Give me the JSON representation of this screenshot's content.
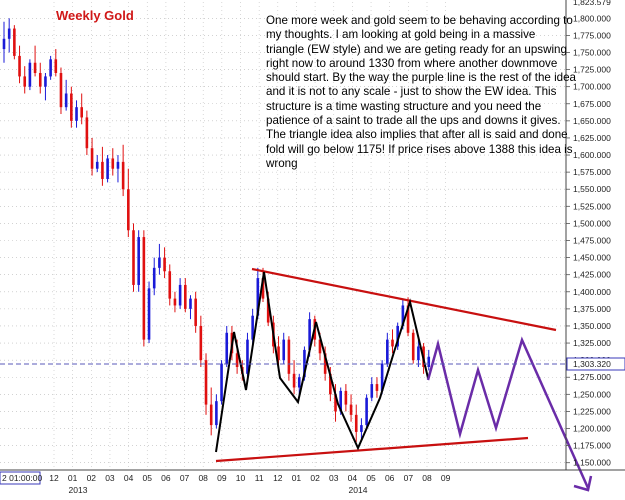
{
  "chart_data": {
    "type": "candlestick",
    "title": "Weekly Gold",
    "annotation": "One more week and gold seem to be behaving according to my thoughts. I am looking at gold being in a massive triangle (EW style) and we are geting ready for an upswing right now to around 1330 from where another downmove should start. By the way the purple line is the rest of the idea and it is not to any scale - just to show the EW idea. This structure is a time wasting structure and you need the patience of a saint to trade all the ups and downs it gives. The triangle idea also implies that after all is said and done fold will go below 1175! If price rises above 1388 this idea is wrong",
    "ylim": [
      1140,
      1830
    ],
    "yticks": [
      "1,800.000",
      "1,775.000",
      "1,750.000",
      "1,725.000",
      "1,700.000",
      "1,675.000",
      "1,650.000",
      "1,625.000",
      "1,600.000",
      "1,575.000",
      "1,550.000",
      "1,525.000",
      "1,500.000",
      "1,475.000",
      "1,450.000",
      "1,425.000",
      "1,400.000",
      "1,375.000",
      "1,350.000",
      "1,325.000",
      "1,300.000",
      "1,275.000",
      "1,250.000",
      "1,225.000",
      "1,200.000",
      "1,175.000",
      "1,150.000"
    ],
    "top_partial_label": "1,823.579",
    "last_price": 1303.32,
    "last_price_label": "1,303.320",
    "x_timestamp_label": "2 01:00:00",
    "month_labels": [
      "12",
      "01",
      "02",
      "03",
      "04",
      "05",
      "06",
      "07",
      "08",
      "09",
      "10",
      "11",
      "12",
      "01",
      "02",
      "03",
      "04",
      "05",
      "06",
      "07",
      "08",
      "09"
    ],
    "year_labels": [
      "2013",
      "2014"
    ],
    "candles": [
      {
        "o": 1755,
        "h": 1795,
        "l": 1735,
        "c": 1770
      },
      {
        "o": 1770,
        "h": 1800,
        "l": 1750,
        "c": 1785
      },
      {
        "o": 1785,
        "h": 1790,
        "l": 1740,
        "c": 1745
      },
      {
        "o": 1745,
        "h": 1760,
        "l": 1705,
        "c": 1715
      },
      {
        "o": 1715,
        "h": 1730,
        "l": 1690,
        "c": 1700
      },
      {
        "o": 1700,
        "h": 1740,
        "l": 1695,
        "c": 1735
      },
      {
        "o": 1735,
        "h": 1760,
        "l": 1715,
        "c": 1720
      },
      {
        "o": 1720,
        "h": 1735,
        "l": 1690,
        "c": 1700
      },
      {
        "o": 1700,
        "h": 1720,
        "l": 1680,
        "c": 1715
      },
      {
        "o": 1715,
        "h": 1745,
        "l": 1710,
        "c": 1740
      },
      {
        "o": 1740,
        "h": 1755,
        "l": 1715,
        "c": 1720
      },
      {
        "o": 1720,
        "h": 1728,
        "l": 1660,
        "c": 1670
      },
      {
        "o": 1670,
        "h": 1710,
        "l": 1665,
        "c": 1690
      },
      {
        "o": 1690,
        "h": 1700,
        "l": 1640,
        "c": 1650
      },
      {
        "o": 1650,
        "h": 1680,
        "l": 1640,
        "c": 1670
      },
      {
        "o": 1670,
        "h": 1690,
        "l": 1645,
        "c": 1655
      },
      {
        "o": 1655,
        "h": 1665,
        "l": 1600,
        "c": 1610
      },
      {
        "o": 1610,
        "h": 1625,
        "l": 1570,
        "c": 1580
      },
      {
        "o": 1580,
        "h": 1600,
        "l": 1575,
        "c": 1590
      },
      {
        "o": 1590,
        "h": 1612,
        "l": 1555,
        "c": 1565
      },
      {
        "o": 1565,
        "h": 1600,
        "l": 1560,
        "c": 1595
      },
      {
        "o": 1595,
        "h": 1610,
        "l": 1570,
        "c": 1580
      },
      {
        "o": 1580,
        "h": 1600,
        "l": 1560,
        "c": 1590
      },
      {
        "o": 1590,
        "h": 1615,
        "l": 1540,
        "c": 1550
      },
      {
        "o": 1550,
        "h": 1580,
        "l": 1480,
        "c": 1490
      },
      {
        "o": 1490,
        "h": 1500,
        "l": 1400,
        "c": 1410
      },
      {
        "o": 1410,
        "h": 1490,
        "l": 1400,
        "c": 1480
      },
      {
        "o": 1480,
        "h": 1490,
        "l": 1320,
        "c": 1330
      },
      {
        "o": 1330,
        "h": 1415,
        "l": 1325,
        "c": 1405
      },
      {
        "o": 1405,
        "h": 1450,
        "l": 1395,
        "c": 1435
      },
      {
        "o": 1435,
        "h": 1470,
        "l": 1425,
        "c": 1450
      },
      {
        "o": 1450,
        "h": 1465,
        "l": 1420,
        "c": 1430
      },
      {
        "o": 1430,
        "h": 1440,
        "l": 1380,
        "c": 1390
      },
      {
        "o": 1390,
        "h": 1400,
        "l": 1370,
        "c": 1380
      },
      {
        "o": 1380,
        "h": 1420,
        "l": 1375,
        "c": 1410
      },
      {
        "o": 1410,
        "h": 1420,
        "l": 1370,
        "c": 1375
      },
      {
        "o": 1375,
        "h": 1395,
        "l": 1360,
        "c": 1390
      },
      {
        "o": 1390,
        "h": 1400,
        "l": 1340,
        "c": 1350
      },
      {
        "o": 1350,
        "h": 1365,
        "l": 1290,
        "c": 1300
      },
      {
        "o": 1300,
        "h": 1310,
        "l": 1220,
        "c": 1235
      },
      {
        "o": 1235,
        "h": 1260,
        "l": 1190,
        "c": 1205
      },
      {
        "o": 1205,
        "h": 1250,
        "l": 1200,
        "c": 1240
      },
      {
        "o": 1240,
        "h": 1300,
        "l": 1235,
        "c": 1295
      },
      {
        "o": 1295,
        "h": 1350,
        "l": 1290,
        "c": 1340
      },
      {
        "o": 1340,
        "h": 1350,
        "l": 1300,
        "c": 1310
      },
      {
        "o": 1310,
        "h": 1330,
        "l": 1280,
        "c": 1290
      },
      {
        "o": 1290,
        "h": 1300,
        "l": 1270,
        "c": 1280
      },
      {
        "o": 1280,
        "h": 1340,
        "l": 1275,
        "c": 1330
      },
      {
        "o": 1330,
        "h": 1375,
        "l": 1320,
        "c": 1365
      },
      {
        "o": 1365,
        "h": 1435,
        "l": 1360,
        "c": 1420
      },
      {
        "o": 1420,
        "h": 1435,
        "l": 1385,
        "c": 1390
      },
      {
        "o": 1390,
        "h": 1400,
        "l": 1350,
        "c": 1355
      },
      {
        "o": 1355,
        "h": 1365,
        "l": 1310,
        "c": 1320
      },
      {
        "o": 1320,
        "h": 1335,
        "l": 1290,
        "c": 1300
      },
      {
        "o": 1300,
        "h": 1340,
        "l": 1295,
        "c": 1330
      },
      {
        "o": 1330,
        "h": 1335,
        "l": 1270,
        "c": 1280
      },
      {
        "o": 1280,
        "h": 1300,
        "l": 1250,
        "c": 1260
      },
      {
        "o": 1260,
        "h": 1280,
        "l": 1245,
        "c": 1275
      },
      {
        "o": 1275,
        "h": 1320,
        "l": 1270,
        "c": 1315
      },
      {
        "o": 1315,
        "h": 1370,
        "l": 1305,
        "c": 1360
      },
      {
        "o": 1360,
        "h": 1365,
        "l": 1320,
        "c": 1330
      },
      {
        "o": 1330,
        "h": 1340,
        "l": 1300,
        "c": 1310
      },
      {
        "o": 1310,
        "h": 1320,
        "l": 1270,
        "c": 1280
      },
      {
        "o": 1280,
        "h": 1290,
        "l": 1240,
        "c": 1250
      },
      {
        "o": 1250,
        "h": 1265,
        "l": 1210,
        "c": 1225
      },
      {
        "o": 1225,
        "h": 1260,
        "l": 1220,
        "c": 1255
      },
      {
        "o": 1255,
        "h": 1265,
        "l": 1225,
        "c": 1235
      },
      {
        "o": 1235,
        "h": 1250,
        "l": 1210,
        "c": 1220
      },
      {
        "o": 1220,
        "h": 1235,
        "l": 1180,
        "c": 1195
      },
      {
        "o": 1195,
        "h": 1215,
        "l": 1182,
        "c": 1205
      },
      {
        "o": 1205,
        "h": 1250,
        "l": 1200,
        "c": 1245
      },
      {
        "o": 1245,
        "h": 1275,
        "l": 1240,
        "c": 1265
      },
      {
        "o": 1265,
        "h": 1275,
        "l": 1245,
        "c": 1255
      },
      {
        "o": 1255,
        "h": 1300,
        "l": 1250,
        "c": 1295
      },
      {
        "o": 1295,
        "h": 1340,
        "l": 1290,
        "c": 1330
      },
      {
        "o": 1330,
        "h": 1345,
        "l": 1310,
        "c": 1320
      },
      {
        "o": 1320,
        "h": 1355,
        "l": 1315,
        "c": 1350
      },
      {
        "o": 1350,
        "h": 1390,
        "l": 1345,
        "c": 1380
      },
      {
        "o": 1380,
        "h": 1392,
        "l": 1335,
        "c": 1340
      },
      {
        "o": 1340,
        "h": 1345,
        "l": 1295,
        "c": 1300
      },
      {
        "o": 1300,
        "h": 1330,
        "l": 1290,
        "c": 1320
      },
      {
        "o": 1320,
        "h": 1325,
        "l": 1280,
        "c": 1290
      },
      {
        "o": 1290,
        "h": 1315,
        "l": 1285,
        "c": 1305
      }
    ],
    "colors": {
      "up": "#1a1ad8",
      "down": "#e01010",
      "triangle": "#c81010",
      "wave": "#000000",
      "projection": "#6a2ca8",
      "last_price_line": "#5a5ab8"
    }
  }
}
